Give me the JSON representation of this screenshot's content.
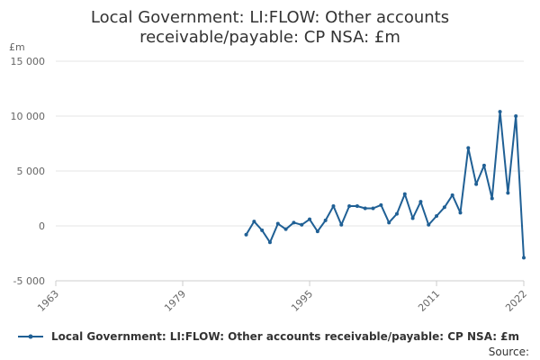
{
  "chart_data": {
    "type": "line",
    "title_lines": [
      "Local Government: LI:FLOW: Other accounts",
      "receivable/payable: CP NSA: £m"
    ],
    "ylabel": "£m",
    "ylim": [
      -5000,
      15000
    ],
    "yticks": [
      -5000,
      0,
      5000,
      10000,
      15000
    ],
    "ytick_labels": [
      "-5 000",
      "0",
      "5 000",
      "10 000",
      "15 000"
    ],
    "xlim": [
      1963,
      2022
    ],
    "xticks": [
      1963,
      1979,
      1995,
      2011,
      2022
    ],
    "xtick_labels": [
      "1963",
      "1979",
      "1995",
      "2011",
      "2022"
    ],
    "grid": true,
    "legend_position": "bottom",
    "color": "#206095",
    "series": [
      {
        "name": "Local Government: LI:FLOW: Other accounts receivable/payable: CP NSA: £m",
        "x": [
          1987,
          1988,
          1989,
          1990,
          1991,
          1992,
          1993,
          1994,
          1995,
          1996,
          1997,
          1998,
          1999,
          2000,
          2001,
          2002,
          2003,
          2004,
          2005,
          2006,
          2007,
          2008,
          2009,
          2010,
          2011,
          2012,
          2013,
          2014,
          2015,
          2016,
          2017,
          2018,
          2019,
          2020,
          2021,
          2022
        ],
        "values": [
          -800,
          400,
          -400,
          -1500,
          200,
          -300,
          300,
          100,
          600,
          -500,
          500,
          1800,
          100,
          1800,
          1800,
          1600,
          1600,
          1900,
          300,
          1100,
          2900,
          700,
          2200,
          100,
          900,
          1700,
          2800,
          1200,
          7100,
          3800,
          5500,
          2500,
          10400,
          3000,
          10000,
          -2900
        ]
      }
    ]
  },
  "source_label": "Source:"
}
